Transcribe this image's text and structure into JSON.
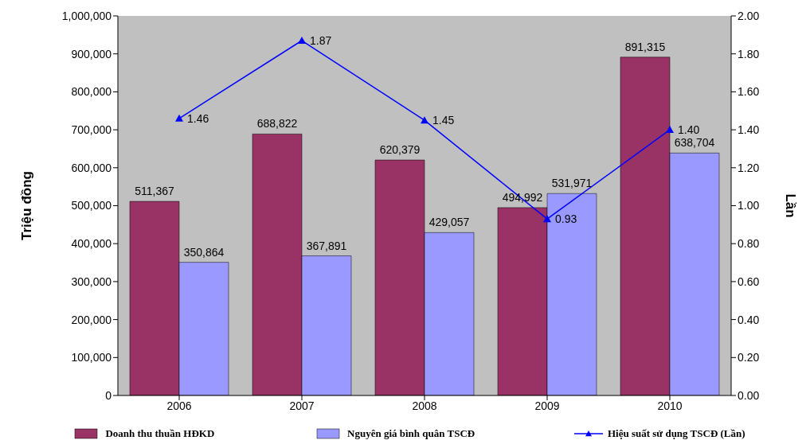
{
  "chart_data": {
    "type": "bar",
    "categories": [
      "2006",
      "2007",
      "2008",
      "2009",
      "2010"
    ],
    "ylabel": "Triệu đồng",
    "y2label": "Lần",
    "legend": "bottom",
    "marker": "triangle",
    "ylim": [
      0,
      1000000
    ],
    "yticks": [
      {
        "value": 0,
        "label": "0"
      },
      {
        "value": 100000,
        "label": "100,000"
      },
      {
        "value": 200000,
        "label": "200,000"
      },
      {
        "value": 300000,
        "label": "300,000"
      },
      {
        "value": 400000,
        "label": "400,000"
      },
      {
        "value": 500000,
        "label": "500,000"
      },
      {
        "value": 600000,
        "label": "600,000"
      },
      {
        "value": 700000,
        "label": "700,000"
      },
      {
        "value": 800000,
        "label": "800,000"
      },
      {
        "value": 900000,
        "label": "900,000"
      },
      {
        "value": 1000000,
        "label": "1,000,000"
      }
    ],
    "y2lim": [
      0,
      2
    ],
    "y2ticks": [
      {
        "value": 0,
        "label": "0.00"
      },
      {
        "value": 0.2,
        "label": "0.20"
      },
      {
        "value": 0.4,
        "label": "0.40"
      },
      {
        "value": 0.6,
        "label": "0.60"
      },
      {
        "value": 0.8,
        "label": "0.80"
      },
      {
        "value": 1,
        "label": "1.00"
      },
      {
        "value": 1.2,
        "label": "1.20"
      },
      {
        "value": 1.4,
        "label": "1.40"
      },
      {
        "value": 1.6,
        "label": "1.60"
      },
      {
        "value": 1.8,
        "label": "1.80"
      },
      {
        "value": 2,
        "label": "2.00"
      }
    ],
    "series": [
      {
        "name": "Doanh thu thuần HĐKD",
        "color": "#993366",
        "values": [
          511367,
          688822,
          620379,
          494992,
          891315
        ],
        "value_labels": [
          "511,367",
          "688,822",
          "620,379",
          "494,992",
          "891,315"
        ]
      },
      {
        "name": "Nguyên giá bình quân TSCĐ",
        "color": "#9999ff",
        "values": [
          350864,
          367891,
          429057,
          531971,
          638704
        ],
        "value_labels": [
          "350,864",
          "367,891",
          "429,057",
          "531,971",
          "638,704"
        ]
      },
      {
        "name": "Hiệu suất sử dụng TSCĐ (Lần)",
        "type": "line",
        "axis": "y2",
        "color": "#0000ff",
        "values": [
          1.46,
          1.87,
          1.45,
          0.93,
          1.4
        ],
        "value_labels": [
          "1.46",
          "1.87",
          "1.45",
          "0.93",
          "1.40"
        ]
      }
    ]
  }
}
